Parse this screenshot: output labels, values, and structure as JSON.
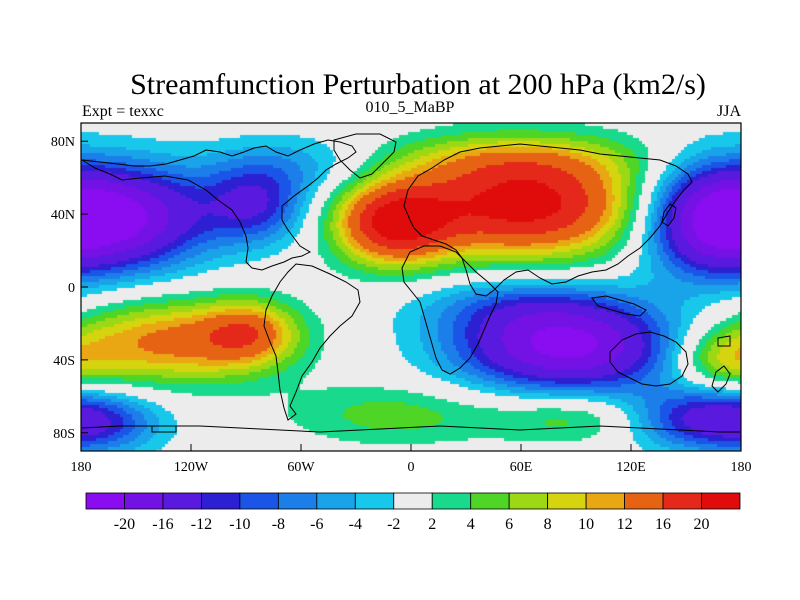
{
  "chart_data": {
    "type": "heatmap",
    "title": "Streamfunction Perturbation at 200 hPa (km2/s)",
    "left_subtitle": "Expt = texxc",
    "center_subtitle": "010_5_MaBP",
    "right_subtitle": "JJA",
    "x_ticks": [
      {
        "value": -180,
        "label": "180"
      },
      {
        "value": -120,
        "label": "120W"
      },
      {
        "value": -60,
        "label": "60W"
      },
      {
        "value": 0,
        "label": "0"
      },
      {
        "value": 60,
        "label": "60E"
      },
      {
        "value": 120,
        "label": "120E"
      },
      {
        "value": 180,
        "label": "180"
      }
    ],
    "y_ticks": [
      {
        "value": 80,
        "label": "80N"
      },
      {
        "value": 40,
        "label": "40N"
      },
      {
        "value": 0,
        "label": "0"
      },
      {
        "value": -40,
        "label": "40S"
      },
      {
        "value": -80,
        "label": "80S"
      }
    ],
    "xlim": [
      -180,
      180
    ],
    "ylim": [
      -90,
      90
    ],
    "contour_levels": [
      -20,
      -16,
      -12,
      -10,
      -8,
      -6,
      -4,
      -2,
      2,
      4,
      6,
      8,
      10,
      12,
      16,
      20
    ],
    "colorbar_labels": [
      "-20",
      "-16",
      "-12",
      "-10",
      "-8",
      "-6",
      "-4",
      "-2",
      "2",
      "4",
      "6",
      "8",
      "10",
      "12",
      "16",
      "20"
    ],
    "colors": [
      "#8a0cf0",
      "#7412e6",
      "#5a19de",
      "#2c20d2",
      "#1a55e8",
      "#1c7fe9",
      "#19a4ea",
      "#18c8ea",
      "#ececec",
      "#18d98c",
      "#4fd526",
      "#9cd814",
      "#d6d40e",
      "#e8a713",
      "#e66313",
      "#e4291a",
      "#e00c0c"
    ],
    "field_centers": [
      {
        "lon": -160,
        "lat": 38,
        "value": -21,
        "sx": 34,
        "sy": 20
      },
      {
        "lon": -85,
        "lat": 45,
        "value": -11,
        "sx": 20,
        "sy": 15
      },
      {
        "lon": -60,
        "lat": 67,
        "value": -5,
        "sx": 35,
        "sy": 12
      },
      {
        "lon": 160,
        "lat": 37,
        "value": -15,
        "sx": 25,
        "sy": 22
      },
      {
        "lon": -10,
        "lat": 35,
        "value": 19,
        "sx": 22,
        "sy": 16
      },
      {
        "lon": 62,
        "lat": 45,
        "value": 22,
        "sx": 45,
        "sy": 20
      },
      {
        "lon": 52,
        "lat": 70,
        "value": 5,
        "sx": 55,
        "sy": 10
      },
      {
        "lon": -130,
        "lat": -30,
        "value": 13,
        "sx": 40,
        "sy": 16
      },
      {
        "lon": -88,
        "lat": -25,
        "value": 10,
        "sx": 18,
        "sy": 12
      },
      {
        "lon": 85,
        "lat": -33,
        "value": -21,
        "sx": 42,
        "sy": 17
      },
      {
        "lon": 60,
        "lat": -10,
        "value": -6,
        "sx": 40,
        "sy": 12
      },
      {
        "lon": -170,
        "lat": -75,
        "value": -8,
        "sx": 25,
        "sy": 12
      },
      {
        "lon": 155,
        "lat": -72,
        "value": -12,
        "sx": 30,
        "sy": 12
      },
      {
        "lon": -10,
        "lat": -70,
        "value": 5,
        "sx": 40,
        "sy": 12
      },
      {
        "lon": 95,
        "lat": -72,
        "value": 6,
        "sx": 35,
        "sy": 10
      },
      {
        "lon": 170,
        "lat": -40,
        "value": 8,
        "sx": 20,
        "sy": 12
      }
    ]
  }
}
